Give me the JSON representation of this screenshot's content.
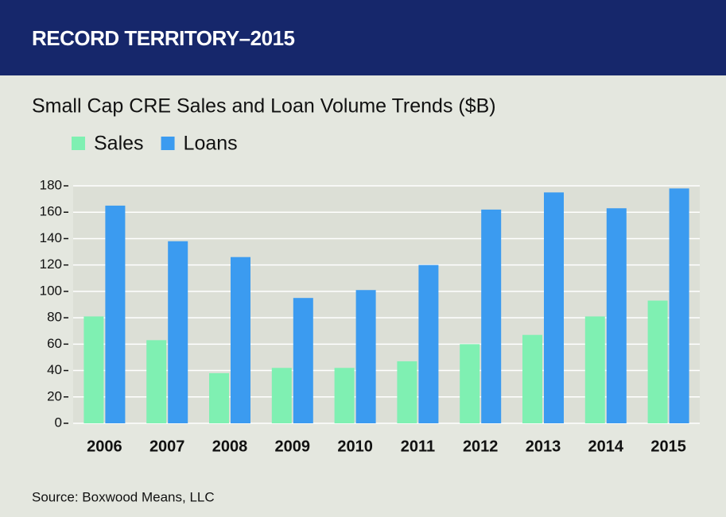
{
  "chart_data": {
    "type": "bar",
    "header": "RECORD TERRITORY–2015",
    "title": "Small Cap CRE Sales and Loan Volume Trends ($B)",
    "source": "Source: Boxwood Means, LLC",
    "categories": [
      "2006",
      "2007",
      "2008",
      "2009",
      "2010",
      "2011",
      "2012",
      "2013",
      "2014",
      "2015"
    ],
    "series": [
      {
        "name": "Sales",
        "color": "#7ff0b2",
        "values": [
          81,
          63,
          38,
          42,
          42,
          47,
          60,
          67,
          81,
          93
        ]
      },
      {
        "name": "Loans",
        "color": "#3b9bf0",
        "values": [
          165,
          138,
          126,
          95,
          101,
          120,
          162,
          175,
          163,
          178
        ]
      }
    ],
    "ylim": [
      0,
      180
    ],
    "yticks": [
      0,
      20,
      40,
      60,
      80,
      100,
      120,
      140,
      160,
      180
    ],
    "grid": true
  }
}
